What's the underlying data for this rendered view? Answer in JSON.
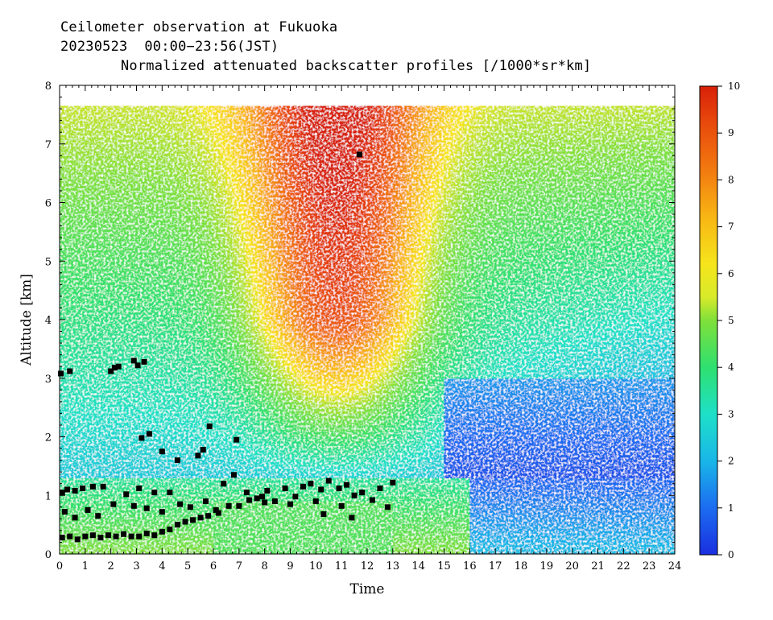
{
  "header": {
    "line1": "Ceilometer observation at Fukuoka",
    "line2": "20230523  00:00−23:56(JST)",
    "line3": "Normalized attenuated backscatter profiles [/1000*sr*km]"
  },
  "chart_data": {
    "type": "heatmap",
    "title": "Normalized attenuated backscatter profiles [/1000*sr*km]",
    "xlabel": "Time",
    "ylabel": "Altitude [km]",
    "xlim": [
      0,
      24
    ],
    "ylim": [
      0,
      8
    ],
    "data_top_altitude_km": 7.65,
    "x_ticks": [
      0,
      1,
      2,
      3,
      4,
      5,
      6,
      7,
      8,
      9,
      10,
      11,
      12,
      13,
      14,
      15,
      16,
      17,
      18,
      19,
      20,
      21,
      22,
      23,
      24
    ],
    "y_ticks": [
      0,
      1,
      2,
      3,
      4,
      5,
      6,
      7,
      8
    ],
    "colorbar": {
      "range": [
        0,
        10
      ],
      "ticks": [
        0,
        1,
        2,
        3,
        4,
        5,
        6,
        7,
        8,
        9,
        10
      ],
      "colors": [
        "#1a2fe0",
        "#1c6cf0",
        "#19b6e8",
        "#1ee0c8",
        "#2fe070",
        "#7fe03a",
        "#f6e51c",
        "#f8b614",
        "#f27a10",
        "#e84a0c",
        "#d8200a"
      ]
    },
    "cloud_base_points": [
      {
        "time": 0.05,
        "alt": 3.08
      },
      {
        "time": 0.4,
        "alt": 3.12
      },
      {
        "time": 2.0,
        "alt": 3.12
      },
      {
        "time": 2.15,
        "alt": 3.18
      },
      {
        "time": 2.3,
        "alt": 3.2
      },
      {
        "time": 2.9,
        "alt": 3.3
      },
      {
        "time": 3.05,
        "alt": 3.22
      },
      {
        "time": 3.3,
        "alt": 3.28
      },
      {
        "time": 11.7,
        "alt": 6.82
      },
      {
        "time": 3.2,
        "alt": 1.98
      },
      {
        "time": 3.5,
        "alt": 2.05
      },
      {
        "time": 4.0,
        "alt": 1.75
      },
      {
        "time": 4.6,
        "alt": 1.6
      },
      {
        "time": 5.4,
        "alt": 1.68
      },
      {
        "time": 5.6,
        "alt": 1.78
      },
      {
        "time": 5.85,
        "alt": 2.18
      },
      {
        "time": 6.9,
        "alt": 1.95
      },
      {
        "time": 0.1,
        "alt": 1.05
      },
      {
        "time": 0.3,
        "alt": 1.1
      },
      {
        "time": 0.6,
        "alt": 1.08
      },
      {
        "time": 0.9,
        "alt": 1.12
      },
      {
        "time": 1.3,
        "alt": 1.15
      },
      {
        "time": 1.7,
        "alt": 1.15
      },
      {
        "time": 2.6,
        "alt": 1.02
      },
      {
        "time": 2.9,
        "alt": 0.82
      },
      {
        "time": 3.1,
        "alt": 1.12
      },
      {
        "time": 3.7,
        "alt": 1.05
      },
      {
        "time": 4.3,
        "alt": 1.05
      },
      {
        "time": 0.2,
        "alt": 0.72
      },
      {
        "time": 0.6,
        "alt": 0.62
      },
      {
        "time": 1.1,
        "alt": 0.75
      },
      {
        "time": 1.5,
        "alt": 0.65
      },
      {
        "time": 2.1,
        "alt": 0.85
      },
      {
        "time": 3.4,
        "alt": 0.78
      },
      {
        "time": 4.0,
        "alt": 0.72
      },
      {
        "time": 4.7,
        "alt": 0.85
      },
      {
        "time": 5.1,
        "alt": 0.8
      },
      {
        "time": 5.7,
        "alt": 0.9
      },
      {
        "time": 6.4,
        "alt": 1.2
      },
      {
        "time": 6.8,
        "alt": 1.35
      },
      {
        "time": 7.3,
        "alt": 1.05
      },
      {
        "time": 7.7,
        "alt": 0.95
      },
      {
        "time": 8.1,
        "alt": 1.08
      },
      {
        "time": 8.4,
        "alt": 0.9
      },
      {
        "time": 8.8,
        "alt": 1.12
      },
      {
        "time": 9.2,
        "alt": 0.98
      },
      {
        "time": 9.5,
        "alt": 1.15
      },
      {
        "time": 9.8,
        "alt": 1.2
      },
      {
        "time": 10.2,
        "alt": 1.1
      },
      {
        "time": 10.5,
        "alt": 1.25
      },
      {
        "time": 10.9,
        "alt": 1.12
      },
      {
        "time": 11.2,
        "alt": 1.18
      },
      {
        "time": 11.5,
        "alt": 1.0
      },
      {
        "time": 11.8,
        "alt": 1.05
      },
      {
        "time": 12.2,
        "alt": 0.92
      },
      {
        "time": 12.5,
        "alt": 1.12
      },
      {
        "time": 12.8,
        "alt": 0.8
      },
      {
        "time": 13.0,
        "alt": 1.22
      },
      {
        "time": 6.1,
        "alt": 0.75
      },
      {
        "time": 7.0,
        "alt": 0.82
      },
      {
        "time": 8.0,
        "alt": 0.88
      },
      {
        "time": 9.0,
        "alt": 0.85
      },
      {
        "time": 10.0,
        "alt": 0.9
      },
      {
        "time": 11.0,
        "alt": 0.82
      },
      {
        "time": 10.3,
        "alt": 0.68
      },
      {
        "time": 11.4,
        "alt": 0.62
      },
      {
        "time": 0.1,
        "alt": 0.28
      },
      {
        "time": 0.4,
        "alt": 0.3
      },
      {
        "time": 0.7,
        "alt": 0.25
      },
      {
        "time": 1.0,
        "alt": 0.3
      },
      {
        "time": 1.3,
        "alt": 0.32
      },
      {
        "time": 1.6,
        "alt": 0.28
      },
      {
        "time": 1.9,
        "alt": 0.32
      },
      {
        "time": 2.2,
        "alt": 0.3
      },
      {
        "time": 2.5,
        "alt": 0.34
      },
      {
        "time": 2.8,
        "alt": 0.3
      },
      {
        "time": 3.1,
        "alt": 0.3
      },
      {
        "time": 3.4,
        "alt": 0.35
      },
      {
        "time": 3.7,
        "alt": 0.32
      },
      {
        "time": 4.0,
        "alt": 0.38
      },
      {
        "time": 4.3,
        "alt": 0.42
      },
      {
        "time": 4.6,
        "alt": 0.5
      },
      {
        "time": 4.9,
        "alt": 0.55
      },
      {
        "time": 5.2,
        "alt": 0.58
      },
      {
        "time": 5.5,
        "alt": 0.62
      },
      {
        "time": 5.8,
        "alt": 0.65
      },
      {
        "time": 6.2,
        "alt": 0.7
      },
      {
        "time": 6.6,
        "alt": 0.82
      },
      {
        "time": 7.4,
        "alt": 0.92
      },
      {
        "time": 7.9,
        "alt": 0.98
      }
    ]
  }
}
